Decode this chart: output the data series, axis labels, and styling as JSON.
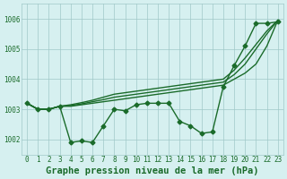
{
  "title": "Graphe pression niveau de la mer (hPa)",
  "bg_color": "#d6f0f0",
  "grid_color": "#a0c8c8",
  "line_color": "#1a6b2a",
  "x_labels": [
    "0",
    "1",
    "2",
    "3",
    "4",
    "5",
    "6",
    "7",
    "8",
    "9",
    "10",
    "11",
    "12",
    "13",
    "14",
    "15",
    "16",
    "17",
    "18",
    "19",
    "20",
    "21",
    "22",
    "23"
  ],
  "ylim": [
    1001.5,
    1006.5
  ],
  "yticks": [
    1002,
    1003,
    1004,
    1005,
    1006
  ],
  "series": [
    [
      1003.2,
      1003.0,
      1003.0,
      1003.1,
      1001.9,
      1001.95,
      1001.9,
      1002.45,
      1003.0,
      1002.95,
      1003.15,
      1003.2,
      1003.2,
      1003.2,
      1002.6,
      1002.45,
      1002.2,
      1002.25,
      1003.75,
      1004.45,
      1005.1,
      1005.85,
      1005.85,
      1005.9
    ],
    [
      1003.2,
      1003.0,
      1003.0,
      1003.1,
      1003.1,
      1003.15,
      1003.2,
      1003.25,
      1003.3,
      1003.35,
      1003.4,
      1003.45,
      1003.5,
      1003.55,
      1003.6,
      1003.65,
      1003.7,
      1003.75,
      1003.8,
      1004.0,
      1004.2,
      1004.5,
      1005.1,
      1005.95
    ],
    [
      1003.2,
      1003.0,
      1003.0,
      1003.1,
      1003.12,
      1003.18,
      1003.25,
      1003.32,
      1003.4,
      1003.45,
      1003.5,
      1003.55,
      1003.6,
      1003.65,
      1003.7,
      1003.75,
      1003.8,
      1003.85,
      1003.9,
      1004.15,
      1004.5,
      1005.0,
      1005.5,
      1005.95
    ],
    [
      1003.2,
      1003.0,
      1003.0,
      1003.1,
      1003.15,
      1003.22,
      1003.3,
      1003.4,
      1003.5,
      1003.55,
      1003.6,
      1003.65,
      1003.7,
      1003.75,
      1003.8,
      1003.85,
      1003.9,
      1003.95,
      1004.0,
      1004.3,
      1004.7,
      1005.15,
      1005.6,
      1005.95
    ]
  ],
  "marker": "D",
  "marker_size": 2.5,
  "linewidth": 1.0,
  "title_fontsize": 7.5,
  "tick_fontsize": 5.5
}
